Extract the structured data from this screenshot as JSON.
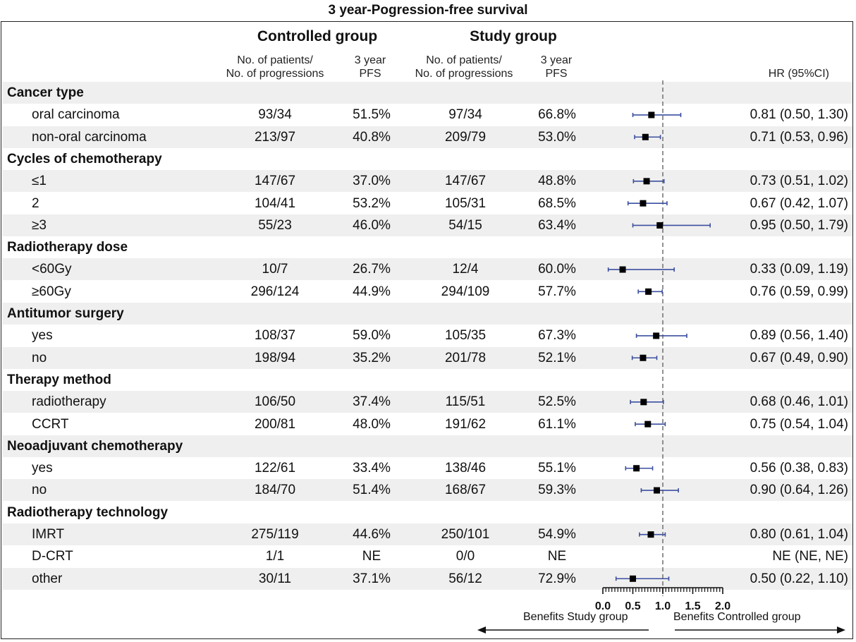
{
  "title": "3 year-Pogression-free survival",
  "groups": {
    "controlled": "Controlled group",
    "study": "Study group"
  },
  "columns": {
    "patients_line1": "No. of patients/",
    "patients_line2": "No. of progressions",
    "pfs_line1": "3 year",
    "pfs_line2": "PFS",
    "hr": "HR (95%CI)"
  },
  "rows": [
    {
      "type": "category",
      "label": "Cancer type"
    },
    {
      "type": "sub",
      "label": "oral carcinoma",
      "ctrl_n": "93/34",
      "ctrl_pfs": "51.5%",
      "study_n": "97/34",
      "study_pfs": "66.8%",
      "hr_text": "0.81 (0.50, 1.30)",
      "hr": 0.81,
      "lo": 0.5,
      "hi": 1.3
    },
    {
      "type": "sub",
      "label": "non-oral carcinoma",
      "ctrl_n": "213/97",
      "ctrl_pfs": "40.8%",
      "study_n": "209/79",
      "study_pfs": "53.0%",
      "hr_text": "0.71 (0.53, 0.96)",
      "hr": 0.71,
      "lo": 0.53,
      "hi": 0.96
    },
    {
      "type": "category",
      "label": "Cycles of chemotherapy"
    },
    {
      "type": "sub",
      "label": "≤1",
      "ctrl_n": "147/67",
      "ctrl_pfs": "37.0%",
      "study_n": "147/67",
      "study_pfs": "48.8%",
      "hr_text": "0.73 (0.51, 1.02)",
      "hr": 0.73,
      "lo": 0.51,
      "hi": 1.02
    },
    {
      "type": "sub",
      "label": "2",
      "ctrl_n": "104/41",
      "ctrl_pfs": "53.2%",
      "study_n": "105/31",
      "study_pfs": "68.5%",
      "hr_text": "0.67 (0.42, 1.07)",
      "hr": 0.67,
      "lo": 0.42,
      "hi": 1.07
    },
    {
      "type": "sub",
      "label": "≥3",
      "ctrl_n": "55/23",
      "ctrl_pfs": "46.0%",
      "study_n": "54/15",
      "study_pfs": "63.4%",
      "hr_text": "0.95 (0.50, 1.79)",
      "hr": 0.95,
      "lo": 0.5,
      "hi": 1.79
    },
    {
      "type": "category",
      "label": "Radiotherapy dose"
    },
    {
      "type": "sub",
      "label": "<60Gy",
      "ctrl_n": "10/7",
      "ctrl_pfs": "26.7%",
      "study_n": "12/4",
      "study_pfs": "60.0%",
      "hr_text": "0.33 (0.09, 1.19)",
      "hr": 0.33,
      "lo": 0.09,
      "hi": 1.19
    },
    {
      "type": "sub",
      "label": "≥60Gy",
      "ctrl_n": "296/124",
      "ctrl_pfs": "44.9%",
      "study_n": "294/109",
      "study_pfs": "57.7%",
      "hr_text": "0.76 (0.59, 0.99)",
      "hr": 0.76,
      "lo": 0.59,
      "hi": 0.99
    },
    {
      "type": "category",
      "label": "Antitumor surgery"
    },
    {
      "type": "sub",
      "label": "yes",
      "ctrl_n": "108/37",
      "ctrl_pfs": "59.0%",
      "study_n": "105/35",
      "study_pfs": "67.3%",
      "hr_text": "0.89 (0.56, 1.40)",
      "hr": 0.89,
      "lo": 0.56,
      "hi": 1.4
    },
    {
      "type": "sub",
      "label": "no",
      "ctrl_n": "198/94",
      "ctrl_pfs": "35.2%",
      "study_n": "201/78",
      "study_pfs": "52.1%",
      "hr_text": "0.67 (0.49, 0.90)",
      "hr": 0.67,
      "lo": 0.49,
      "hi": 0.9
    },
    {
      "type": "category",
      "label": "Therapy method"
    },
    {
      "type": "sub",
      "label": "radiotherapy",
      "ctrl_n": "106/50",
      "ctrl_pfs": "37.4%",
      "study_n": "115/51",
      "study_pfs": "52.5%",
      "hr_text": "0.68 (0.46, 1.01)",
      "hr": 0.68,
      "lo": 0.46,
      "hi": 1.01
    },
    {
      "type": "sub",
      "label": "CCRT",
      "ctrl_n": "200/81",
      "ctrl_pfs": "48.0%",
      "study_n": "191/62",
      "study_pfs": "61.1%",
      "hr_text": "0.75 (0.54, 1.04)",
      "hr": 0.75,
      "lo": 0.54,
      "hi": 1.04
    },
    {
      "type": "category",
      "label": "Neoadjuvant chemotherapy"
    },
    {
      "type": "sub",
      "label": "yes",
      "ctrl_n": "122/61",
      "ctrl_pfs": "33.4%",
      "study_n": "138/46",
      "study_pfs": "55.1%",
      "hr_text": "0.56 (0.38, 0.83)",
      "hr": 0.56,
      "lo": 0.38,
      "hi": 0.83
    },
    {
      "type": "sub",
      "label": "no",
      "ctrl_n": "184/70",
      "ctrl_pfs": "51.4%",
      "study_n": "168/67",
      "study_pfs": "59.3%",
      "hr_text": "0.90 (0.64, 1.26)",
      "hr": 0.9,
      "lo": 0.64,
      "hi": 1.26
    },
    {
      "type": "category",
      "label": "Radiotherapy technology"
    },
    {
      "type": "sub",
      "label": "IMRT",
      "ctrl_n": "275/119",
      "ctrl_pfs": "44.6%",
      "study_n": "250/101",
      "study_pfs": "54.9%",
      "hr_text": "0.80 (0.61, 1.04)",
      "hr": 0.8,
      "lo": 0.61,
      "hi": 1.04
    },
    {
      "type": "sub",
      "label": "D-CRT",
      "ctrl_n": "1/1",
      "ctrl_pfs": "NE",
      "study_n": "0/0",
      "study_pfs": "NE",
      "hr_text": "NE (NE, NE)",
      "hr": null,
      "lo": null,
      "hi": null
    },
    {
      "type": "sub",
      "label": "other",
      "ctrl_n": "30/11",
      "ctrl_pfs": "37.1%",
      "study_n": "56/12",
      "study_pfs": "72.9%",
      "hr_text": "0.50 (0.22, 1.10)",
      "hr": 0.5,
      "lo": 0.22,
      "hi": 1.1
    }
  ],
  "axis": {
    "ticks": [
      "0.0",
      "0.5",
      "1.0",
      "1.5",
      "2.0"
    ],
    "xlim": [
      0,
      2
    ],
    "reference": 1.0
  },
  "benefits": {
    "left": "Benefits Study group",
    "right": "Benefits Controlled group"
  },
  "colors": {
    "ci_line": "#3b4f9f",
    "point": "#000000",
    "ref_line": "#777777",
    "shade": "#efefef"
  },
  "chart_data": {
    "type": "forest",
    "title": "3 year-Pogression-free survival",
    "xlim": [
      0,
      2
    ],
    "reference_line": 1.0,
    "xticks": [
      0.0,
      0.5,
      1.0,
      1.5,
      2.0
    ],
    "subgroups": [
      {
        "category": "Cancer type",
        "label": "oral carcinoma",
        "hr": 0.81,
        "ci": [
          0.5,
          1.3
        ]
      },
      {
        "category": "Cancer type",
        "label": "non-oral carcinoma",
        "hr": 0.71,
        "ci": [
          0.53,
          0.96
        ]
      },
      {
        "category": "Cycles of chemotherapy",
        "label": "≤1",
        "hr": 0.73,
        "ci": [
          0.51,
          1.02
        ]
      },
      {
        "category": "Cycles of chemotherapy",
        "label": "2",
        "hr": 0.67,
        "ci": [
          0.42,
          1.07
        ]
      },
      {
        "category": "Cycles of chemotherapy",
        "label": "≥3",
        "hr": 0.95,
        "ci": [
          0.5,
          1.79
        ]
      },
      {
        "category": "Radiotherapy dose",
        "label": "<60Gy",
        "hr": 0.33,
        "ci": [
          0.09,
          1.19
        ]
      },
      {
        "category": "Radiotherapy dose",
        "label": "≥60Gy",
        "hr": 0.76,
        "ci": [
          0.59,
          0.99
        ]
      },
      {
        "category": "Antitumor surgery",
        "label": "yes",
        "hr": 0.89,
        "ci": [
          0.56,
          1.4
        ]
      },
      {
        "category": "Antitumor surgery",
        "label": "no",
        "hr": 0.67,
        "ci": [
          0.49,
          0.9
        ]
      },
      {
        "category": "Therapy method",
        "label": "radiotherapy",
        "hr": 0.68,
        "ci": [
          0.46,
          1.01
        ]
      },
      {
        "category": "Therapy method",
        "label": "CCRT",
        "hr": 0.75,
        "ci": [
          0.54,
          1.04
        ]
      },
      {
        "category": "Neoadjuvant chemotherapy",
        "label": "yes",
        "hr": 0.56,
        "ci": [
          0.38,
          0.83
        ]
      },
      {
        "category": "Neoadjuvant chemotherapy",
        "label": "no",
        "hr": 0.9,
        "ci": [
          0.64,
          1.26
        ]
      },
      {
        "category": "Radiotherapy technology",
        "label": "IMRT",
        "hr": 0.8,
        "ci": [
          0.61,
          1.04
        ]
      },
      {
        "category": "Radiotherapy technology",
        "label": "D-CRT",
        "hr": null,
        "ci": [
          null,
          null
        ]
      },
      {
        "category": "Radiotherapy technology",
        "label": "other",
        "hr": 0.5,
        "ci": [
          0.22,
          1.1
        ]
      }
    ]
  }
}
